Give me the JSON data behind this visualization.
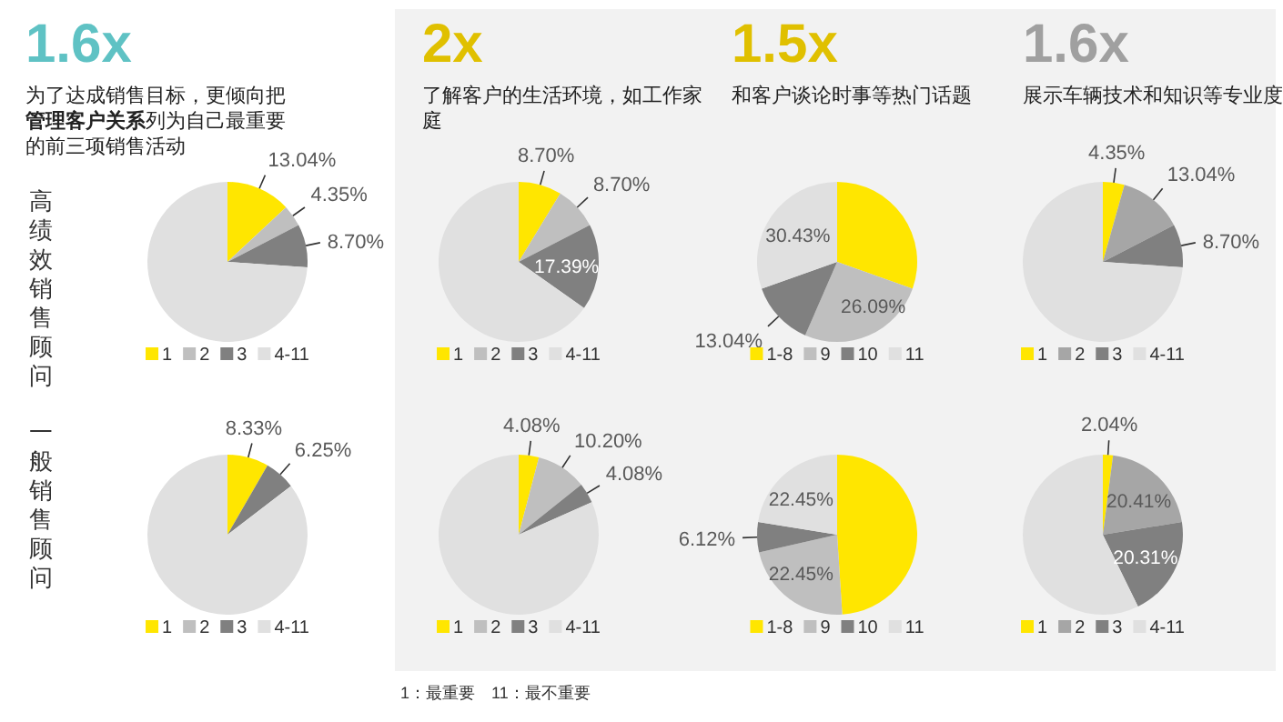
{
  "chart_data": [
    {
      "type": "pie",
      "title": "1.6x",
      "subtitle": "为了达成销售目标，更倾向把**管理客户关系**列为自己最重要的前三项销售活动",
      "annotations": [
        "高绩效销售顾问"
      ],
      "categories": [
        "1",
        "2",
        "3",
        "4-11"
      ],
      "values": [
        13.04,
        4.35,
        8.7,
        73.91
      ],
      "value_labels": [
        "13.04%",
        "4.35%",
        "8.70%",
        null
      ],
      "colors": [
        "#ffe600",
        "#bfbfbf",
        "#808080",
        "#e0e0e0"
      ],
      "legend": "bottom"
    },
    {
      "type": "pie",
      "title": "2x",
      "subtitle": "了解客户的生活环境，如工作家庭",
      "categories": [
        "1",
        "2",
        "3",
        "4-11"
      ],
      "values": [
        8.7,
        8.7,
        17.39,
        65.21
      ],
      "value_labels": [
        "8.70%",
        "8.70%",
        "17.39%",
        null
      ],
      "colors": [
        "#ffe600",
        "#bfbfbf",
        "#808080",
        "#e0e0e0"
      ],
      "legend": "bottom"
    },
    {
      "type": "pie",
      "title": "1.5x",
      "subtitle": "和客户谈论时事等热门话题",
      "categories": [
        "1-8",
        "9",
        "10",
        "11"
      ],
      "values": [
        30.44,
        26.09,
        13.04,
        30.43
      ],
      "value_labels": [
        null,
        "26.09%",
        "13.04%",
        "30.43%"
      ],
      "colors": [
        "#ffe600",
        "#bfbfbf",
        "#808080",
        "#e0e0e0"
      ],
      "legend": "bottom"
    },
    {
      "type": "pie",
      "title": "1.6x",
      "subtitle": "展示车辆技术和知识等专业度",
      "categories": [
        "1",
        "2",
        "3",
        "4-11"
      ],
      "values": [
        4.35,
        13.04,
        8.7,
        73.91
      ],
      "value_labels": [
        "4.35%",
        "13.04%",
        "8.70%",
        null
      ],
      "colors": [
        "#ffe600",
        "#a6a6a6",
        "#808080",
        "#e0e0e0"
      ],
      "legend": "bottom"
    },
    {
      "type": "pie",
      "annotations": [
        "一般销售顾问"
      ],
      "categories": [
        "1",
        "2",
        "3",
        "4-11"
      ],
      "values": [
        8.33,
        0,
        6.25,
        85.42
      ],
      "value_labels": [
        "8.33%",
        null,
        "6.25%",
        null
      ],
      "colors": [
        "#ffe600",
        "#bfbfbf",
        "#808080",
        "#e0e0e0"
      ],
      "legend": "bottom"
    },
    {
      "type": "pie",
      "annotations": [
        "1：最重要　11：最不重要"
      ],
      "categories": [
        "1",
        "2",
        "3",
        "4-11"
      ],
      "values": [
        4.08,
        10.2,
        4.08,
        81.64
      ],
      "value_labels": [
        "4.08%",
        "10.20%",
        "4.08%",
        null
      ],
      "colors": [
        "#ffe600",
        "#bfbfbf",
        "#808080",
        "#e0e0e0"
      ],
      "legend": "bottom"
    },
    {
      "type": "pie",
      "categories": [
        "1-8",
        "9",
        "10",
        "11"
      ],
      "values": [
        48.98,
        22.45,
        6.12,
        22.45
      ],
      "value_labels": [
        null,
        "22.45%",
        "6.12%",
        "22.45%"
      ],
      "colors": [
        "#ffe600",
        "#bfbfbf",
        "#808080",
        "#e0e0e0"
      ],
      "legend": "bottom"
    },
    {
      "type": "pie",
      "categories": [
        "1",
        "2",
        "3",
        "4-11"
      ],
      "values": [
        2.04,
        20.41,
        20.31,
        57.24
      ],
      "value_labels": [
        "2.04%",
        "20.41%",
        "20.31%",
        null
      ],
      "colors": [
        "#ffe600",
        "#a6a6a6",
        "#808080",
        "#e0e0e0"
      ],
      "legend": "bottom"
    }
  ]
}
